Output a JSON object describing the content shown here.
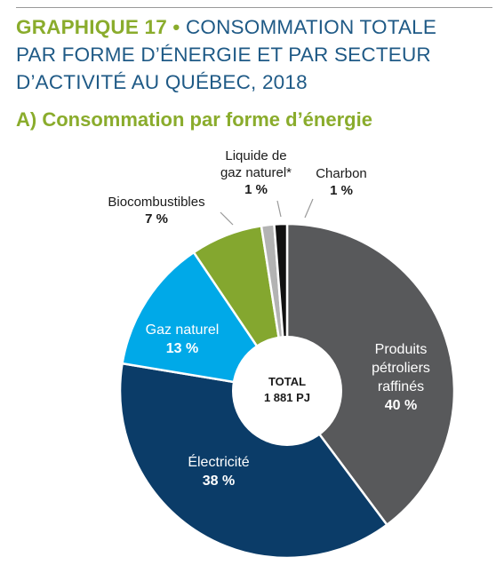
{
  "header": {
    "title_prefix": "GRAPHIQUE 17",
    "title_bullet": "•",
    "title_line1": "CONSOMMATION TOTALE",
    "title_line2": "PAR FORME D’ÉNERGIE ET PAR SECTEUR",
    "title_line3": "D’ACTIVITÉ AU QUÉBEC, 2018",
    "subtitle": "A) Consommation par forme d’énergie"
  },
  "chart_data": {
    "type": "pie",
    "donut": true,
    "center_label": [
      "TOTAL",
      "1 881 PJ"
    ],
    "slices": [
      {
        "name": "Produits pétroliers raffinés",
        "label_lines": [
          "Produits",
          "pétroliers",
          "raffinés"
        ],
        "value": 40,
        "value_label": "40 %",
        "color": "#58595b"
      },
      {
        "name": "Électricité",
        "label_lines": [
          "Électricité"
        ],
        "value": 38,
        "value_label": "38 %",
        "color": "#0b3c68"
      },
      {
        "name": "Gaz naturel",
        "label_lines": [
          "Gaz naturel"
        ],
        "value": 13,
        "value_label": "13 %",
        "color": "#00a9e8"
      },
      {
        "name": "Biocombustibles",
        "label_lines": [
          "Biocombustibles"
        ],
        "value": 7,
        "value_label": "7 %",
        "color": "#84a72f"
      },
      {
        "name": "Liquide de gaz naturel*",
        "label_lines": [
          "Liquide de",
          "gaz naturel*"
        ],
        "value": 1,
        "value_label": "1 %",
        "color": "#b3b3b3"
      },
      {
        "name": "Charbon",
        "label_lines": [
          "Charbon"
        ],
        "value": 1,
        "value_label": "1 %",
        "color": "#111111"
      }
    ]
  }
}
